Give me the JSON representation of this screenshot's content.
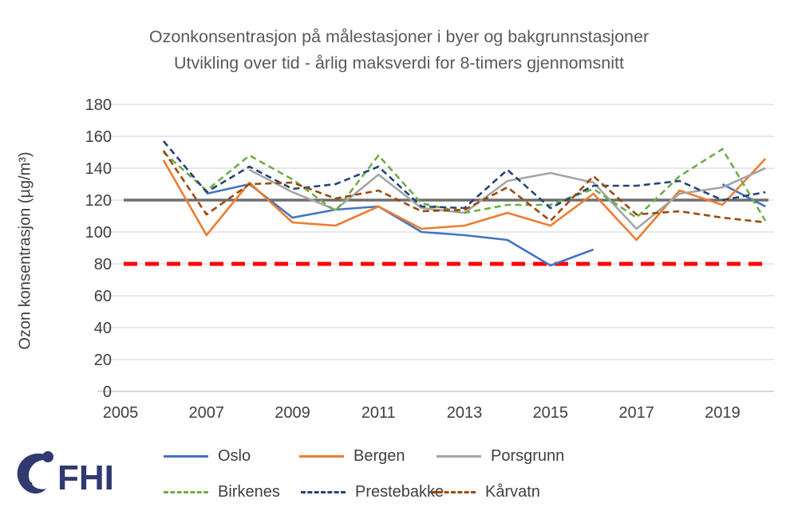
{
  "title": {
    "line1": "Ozonkonsentrasjon på målestasjoner i byer og bakgrunnstasjoner",
    "line2": "Utvikling over tid - årlig maksverdi for 8-timers gjennomsnitt"
  },
  "chart_data": {
    "type": "line",
    "title": "Ozonkonsentrasjon på målestasjoner i byer og bakgrunnstasjoner — Utvikling over tid - årlig maksverdi for 8-timers gjennomsnitt",
    "xlabel": "",
    "ylabel": "Ozon konsentrasjon (µg/m³)",
    "x": [
      2006,
      2007,
      2008,
      2009,
      2010,
      2011,
      2012,
      2013,
      2014,
      2015,
      2016,
      2017,
      2018,
      2019,
      2020
    ],
    "x_ticks": [
      2005,
      2007,
      2009,
      2011,
      2013,
      2015,
      2017,
      2019
    ],
    "y_ticks": [
      0,
      20,
      40,
      60,
      80,
      100,
      120,
      140,
      160,
      180
    ],
    "ylim": [
      0,
      180
    ],
    "xlim": [
      2005,
      2020.2
    ],
    "grid": true,
    "legend_position": "bottom",
    "reference_lines": [
      {
        "name": "threshold-120",
        "value": 120,
        "color": "#6e6e6e",
        "dash": "solid"
      },
      {
        "name": "threshold-80",
        "value": 80,
        "color": "#ff0000",
        "dash": "dashed"
      }
    ],
    "series": [
      {
        "name": "Oslo",
        "color": "#4472c4",
        "dash": "solid",
        "values": [
          null,
          124,
          130,
          109,
          114,
          116,
          100,
          98,
          95,
          79,
          89,
          null,
          null,
          130,
          116
        ]
      },
      {
        "name": "Bergen",
        "color": "#ed7d31",
        "dash": "solid",
        "values": [
          145,
          98,
          131,
          106,
          104,
          116,
          102,
          104,
          112,
          104,
          124,
          95,
          126,
          117,
          146
        ]
      },
      {
        "name": "Porsgrunn",
        "color": "#a5a5a5",
        "dash": "solid",
        "values": [
          null,
          null,
          139,
          125,
          114,
          136,
          115,
          112,
          132,
          137,
          131,
          102,
          124,
          128,
          140
        ]
      },
      {
        "name": "Birkenes",
        "color": "#70ad47",
        "dash": "dashed",
        "values": [
          150,
          126,
          148,
          133,
          113,
          148,
          118,
          112,
          117,
          117,
          127,
          109,
          135,
          152,
          107
        ]
      },
      {
        "name": "Prestebakke",
        "color": "#264478",
        "dash": "dashed",
        "values": [
          157,
          125,
          141,
          127,
          130,
          141,
          116,
          115,
          139,
          115,
          129,
          129,
          132,
          120,
          125
        ]
      },
      {
        "name": "Kårvatn",
        "color": "#9c4a0e",
        "dash": "dashed",
        "values": [
          151,
          111,
          130,
          131,
          121,
          126,
          113,
          114,
          128,
          107,
          135,
          111,
          113,
          109,
          106
        ]
      }
    ]
  },
  "legend": {
    "items": [
      "Oslo",
      "Bergen",
      "Porsgrunn",
      "Birkenes",
      "Prestebakke",
      "Kårvatn"
    ]
  },
  "logo": {
    "text": "FHI",
    "color": "#303a70"
  }
}
